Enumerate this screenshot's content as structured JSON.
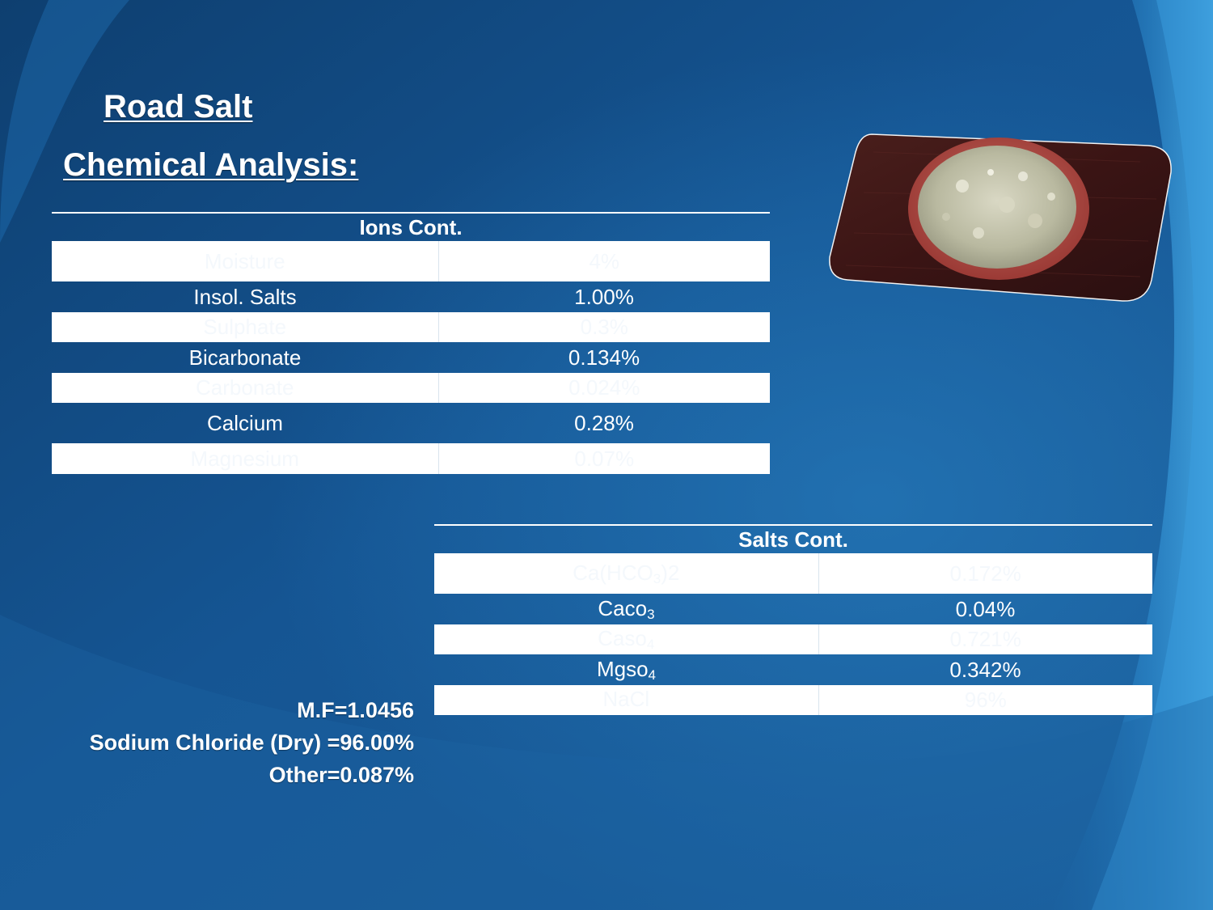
{
  "title": "Road Salt",
  "subtitle": "Chemical Analysis:",
  "ions_table": {
    "header": "Ions Cont.",
    "rows": [
      {
        "name": "Moisture",
        "value": "4%"
      },
      {
        "name": "Insol. Salts",
        "value": "1.00%"
      },
      {
        "name": "Sulphate",
        "value": "0.3%"
      },
      {
        "name": "Bicarbonate",
        "value": "0.134%"
      },
      {
        "name": "Carbonate",
        "value": "0.024%"
      },
      {
        "name": "Calcium",
        "value": "0.28%"
      },
      {
        "name": "Magnesium",
        "value": "0.07%"
      }
    ]
  },
  "salts_table": {
    "header": "Salts Cont.",
    "rows": [
      {
        "name": "Ca(HCO",
        "sub": "3",
        "suffix": ")2",
        "value": "0.172%"
      },
      {
        "name": "Caco",
        "sub": "3",
        "suffix": "",
        "value": "0.04%"
      },
      {
        "name": "Caso",
        "sub": "4",
        "suffix": "",
        "value": "0.721%"
      },
      {
        "name": "Mgso",
        "sub": "4",
        "suffix": "",
        "value": "0.342%"
      },
      {
        "name": "NaCl",
        "sub": "",
        "suffix": "",
        "value": "96%"
      }
    ]
  },
  "notes": {
    "mf": "M.F=1.0456",
    "sodium_chloride": "Sodium Chloride (Dry) =96.00%",
    "other": "Other=0.087%"
  },
  "colors": {
    "background_dark": "#0d3a66",
    "background_mid": "#1a5e9e",
    "background_light": "#3f9fdc",
    "text": "#ffffff"
  },
  "icons": {
    "photo": "salt-on-plate-photo"
  }
}
